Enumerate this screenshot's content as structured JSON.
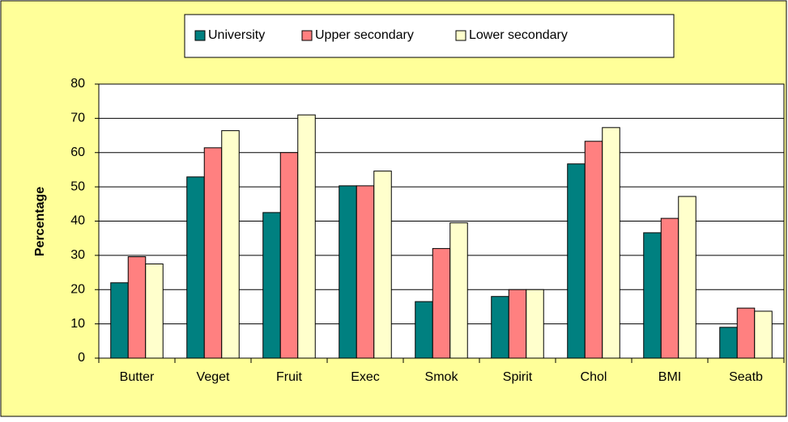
{
  "chart_data": {
    "type": "bar",
    "y_label": "Percentage",
    "categories": [
      "Butter",
      "Veget",
      "Fruit",
      "Exec",
      "Smok",
      "Spirit",
      "Chol",
      "BMI",
      "Seatb"
    ],
    "series": [
      {
        "name": "University",
        "color": "#008080",
        "values": [
          22,
          52.9,
          42.5,
          50.3,
          16.5,
          18,
          56.7,
          36.6,
          9
        ]
      },
      {
        "name": "Upper secondary",
        "color": "#ff8080",
        "values": [
          29.6,
          61.4,
          60,
          50.3,
          32,
          20,
          63.3,
          40.8,
          14.6
        ]
      },
      {
        "name": "Lower secondary",
        "color": "#ffffcc",
        "values": [
          27.5,
          66.4,
          71,
          54.6,
          39.5,
          20,
          67.3,
          47.2,
          13.7
        ]
      }
    ],
    "ylim": [
      0,
      80
    ],
    "yticks": [
      0,
      10,
      20,
      30,
      40,
      50,
      60,
      70,
      80
    ],
    "grid": true,
    "legend": "top"
  }
}
